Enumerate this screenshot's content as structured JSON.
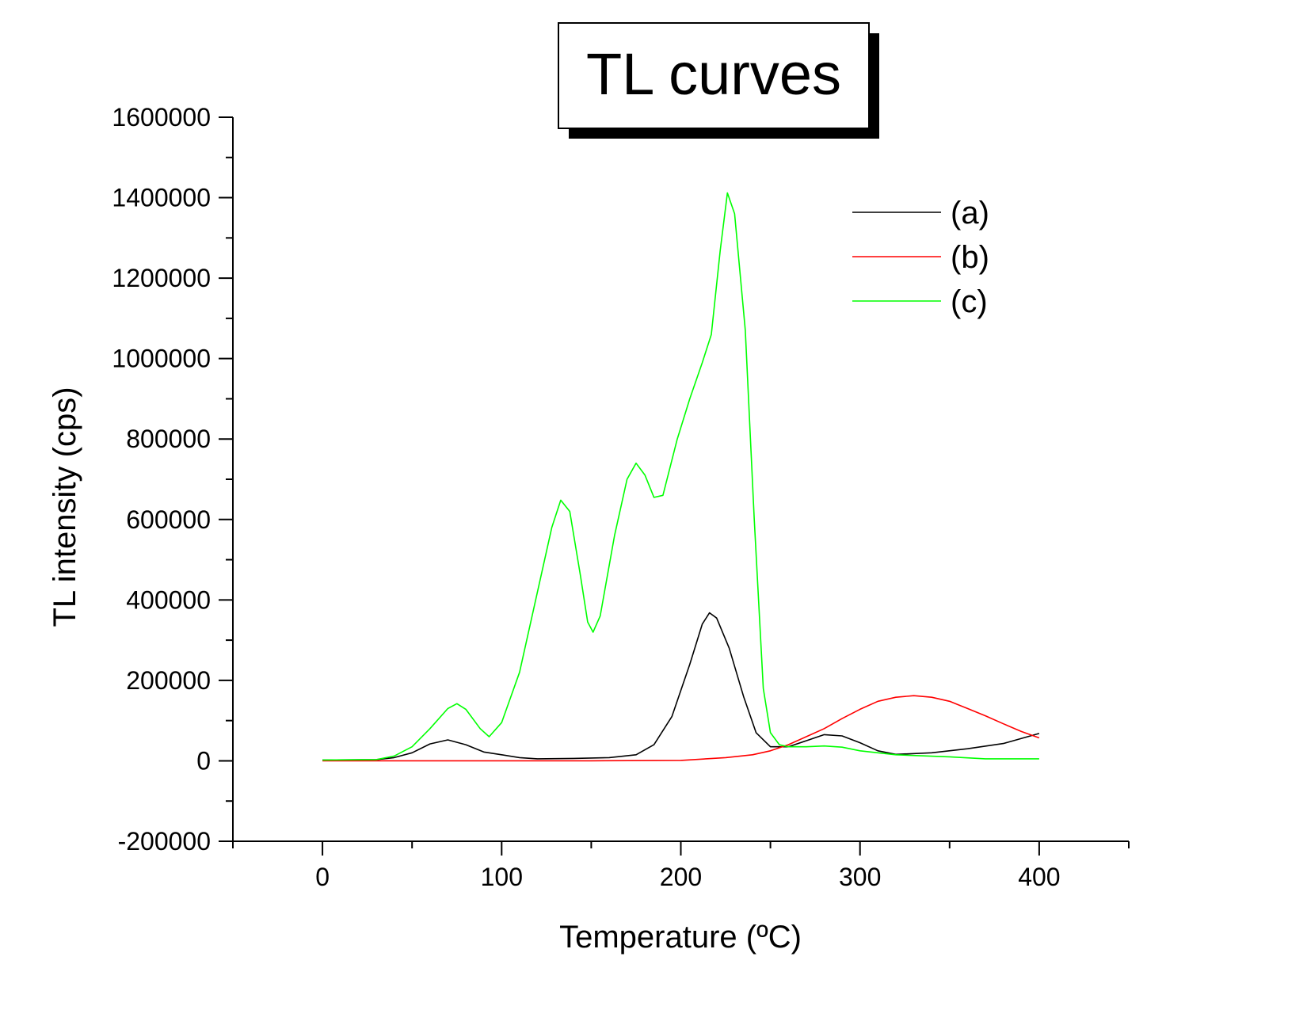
{
  "chart_data": {
    "type": "line",
    "title": "TL curves",
    "xlabel": "Temperature (ºC)",
    "ylabel": "TL intensity (cps)",
    "xlim": [
      -50,
      450
    ],
    "ylim": [
      -200000,
      1600000
    ],
    "x_ticks": [
      0,
      100,
      200,
      300,
      400
    ],
    "x_tick_labels": [
      "0",
      "100",
      "200",
      "300",
      "400"
    ],
    "y_ticks": [
      -200000,
      0,
      200000,
      400000,
      600000,
      800000,
      1000000,
      1200000,
      1400000,
      1600000
    ],
    "y_tick_labels": [
      "-200000",
      "0",
      "200000",
      "400000",
      "600000",
      "800000",
      "1000000",
      "1200000",
      "1400000",
      "1600000"
    ],
    "legend_position": "top-right",
    "grid": false,
    "series": [
      {
        "name": "(a)",
        "color": "#000000",
        "points": [
          [
            0,
            2000
          ],
          [
            30,
            3000
          ],
          [
            40,
            8000
          ],
          [
            50,
            20000
          ],
          [
            60,
            42000
          ],
          [
            70,
            52000
          ],
          [
            80,
            40000
          ],
          [
            90,
            22000
          ],
          [
            100,
            15000
          ],
          [
            110,
            8000
          ],
          [
            120,
            5000
          ],
          [
            140,
            6000
          ],
          [
            160,
            8000
          ],
          [
            175,
            15000
          ],
          [
            185,
            40000
          ],
          [
            195,
            110000
          ],
          [
            205,
            240000
          ],
          [
            212,
            340000
          ],
          [
            216,
            368000
          ],
          [
            220,
            355000
          ],
          [
            227,
            280000
          ],
          [
            235,
            160000
          ],
          [
            242,
            70000
          ],
          [
            250,
            35000
          ],
          [
            260,
            35000
          ],
          [
            270,
            50000
          ],
          [
            280,
            65000
          ],
          [
            290,
            62000
          ],
          [
            300,
            45000
          ],
          [
            310,
            25000
          ],
          [
            320,
            16000
          ],
          [
            340,
            20000
          ],
          [
            360,
            30000
          ],
          [
            380,
            43000
          ],
          [
            400,
            68000
          ]
        ]
      },
      {
        "name": "(b)",
        "color": "#ff0000",
        "points": [
          [
            0,
            0
          ],
          [
            100,
            0
          ],
          [
            150,
            0
          ],
          [
            200,
            1000
          ],
          [
            225,
            8000
          ],
          [
            240,
            15000
          ],
          [
            250,
            25000
          ],
          [
            260,
            40000
          ],
          [
            270,
            60000
          ],
          [
            280,
            80000
          ],
          [
            290,
            105000
          ],
          [
            300,
            128000
          ],
          [
            310,
            148000
          ],
          [
            320,
            158000
          ],
          [
            330,
            162000
          ],
          [
            340,
            158000
          ],
          [
            350,
            148000
          ],
          [
            360,
            130000
          ],
          [
            370,
            112000
          ],
          [
            380,
            92000
          ],
          [
            390,
            73000
          ],
          [
            400,
            57000
          ]
        ]
      },
      {
        "name": "(c)",
        "color": "#00ff00",
        "points": [
          [
            0,
            2000
          ],
          [
            30,
            3000
          ],
          [
            40,
            12000
          ],
          [
            50,
            35000
          ],
          [
            60,
            80000
          ],
          [
            70,
            130000
          ],
          [
            75,
            142000
          ],
          [
            80,
            128000
          ],
          [
            88,
            80000
          ],
          [
            93,
            60000
          ],
          [
            100,
            95000
          ],
          [
            110,
            220000
          ],
          [
            120,
            420000
          ],
          [
            128,
            580000
          ],
          [
            133,
            648000
          ],
          [
            138,
            620000
          ],
          [
            144,
            460000
          ],
          [
            148,
            345000
          ],
          [
            151,
            320000
          ],
          [
            155,
            360000
          ],
          [
            163,
            560000
          ],
          [
            170,
            700000
          ],
          [
            175,
            740000
          ],
          [
            180,
            710000
          ],
          [
            185,
            655000
          ],
          [
            190,
            660000
          ],
          [
            198,
            800000
          ],
          [
            205,
            900000
          ],
          [
            212,
            990000
          ],
          [
            217,
            1060000
          ],
          [
            222,
            1270000
          ],
          [
            226,
            1412000
          ],
          [
            230,
            1360000
          ],
          [
            236,
            1070000
          ],
          [
            241,
            600000
          ],
          [
            246,
            180000
          ],
          [
            250,
            70000
          ],
          [
            255,
            40000
          ],
          [
            260,
            35000
          ],
          [
            270,
            35000
          ],
          [
            280,
            37000
          ],
          [
            290,
            34000
          ],
          [
            300,
            25000
          ],
          [
            320,
            15000
          ],
          [
            350,
            10000
          ],
          [
            370,
            5000
          ],
          [
            400,
            5000
          ]
        ]
      }
    ]
  }
}
